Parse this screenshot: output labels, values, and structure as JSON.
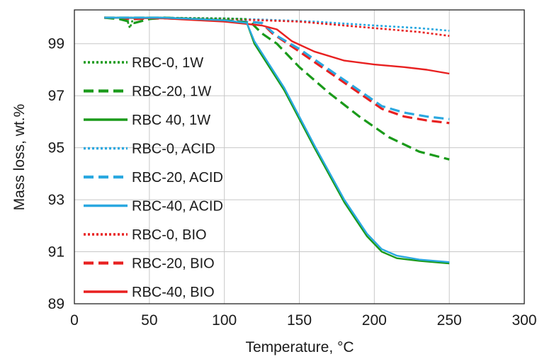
{
  "chart_data": {
    "type": "line",
    "xlabel": "Temperature, °C",
    "ylabel": "Mass loss, wt.%",
    "xlim": [
      0,
      300
    ],
    "ylim": [
      89,
      100.3
    ],
    "xticks": [
      0,
      50,
      100,
      150,
      200,
      250,
      300
    ],
    "yticks": [
      89,
      91,
      93,
      95,
      97,
      99
    ],
    "grid": true,
    "legend_position": "left-inside",
    "series": [
      {
        "name": "RBC-0, 1W",
        "color": "#1a9a1a",
        "style": "dotted",
        "points": [
          [
            20,
            100.0
          ],
          [
            30,
            100.0
          ],
          [
            35,
            99.95
          ],
          [
            37,
            99.6
          ],
          [
            39,
            99.95
          ],
          [
            45,
            100.0
          ],
          [
            60,
            100.0
          ],
          [
            80,
            99.98
          ],
          [
            100,
            99.97
          ],
          [
            115,
            99.95
          ]
        ]
      },
      {
        "name": "RBC-20, 1W",
        "color": "#1a9a1a",
        "style": "dashed",
        "points": [
          [
            20,
            100.0
          ],
          [
            30,
            99.95
          ],
          [
            40,
            99.8
          ],
          [
            50,
            99.95
          ],
          [
            60,
            100.0
          ],
          [
            80,
            99.95
          ],
          [
            100,
            99.9
          ],
          [
            118,
            99.8
          ],
          [
            125,
            99.4
          ],
          [
            135,
            99.0
          ],
          [
            150,
            98.1
          ],
          [
            170,
            97.1
          ],
          [
            190,
            96.2
          ],
          [
            210,
            95.4
          ],
          [
            230,
            94.85
          ],
          [
            250,
            94.55
          ]
        ]
      },
      {
        "name": "RBC 40, 1W",
        "color": "#1a9a1a",
        "style": "solid",
        "points": [
          [
            20,
            100.0
          ],
          [
            60,
            100.0
          ],
          [
            100,
            99.9
          ],
          [
            115,
            99.8
          ],
          [
            120,
            99.0
          ],
          [
            140,
            97.2
          ],
          [
            160,
            95.0
          ],
          [
            180,
            92.9
          ],
          [
            195,
            91.6
          ],
          [
            205,
            91.0
          ],
          [
            215,
            90.75
          ],
          [
            230,
            90.65
          ],
          [
            250,
            90.55
          ]
        ]
      },
      {
        "name": "RBC-0, ACID",
        "color": "#2aa8e0",
        "style": "dotted",
        "points": [
          [
            20,
            100.0
          ],
          [
            60,
            100.0
          ],
          [
            100,
            99.98
          ],
          [
            130,
            99.92
          ],
          [
            160,
            99.85
          ],
          [
            200,
            99.7
          ],
          [
            230,
            99.6
          ],
          [
            250,
            99.5
          ]
        ]
      },
      {
        "name": "RBC-20, ACID",
        "color": "#2aa8e0",
        "style": "dashed",
        "points": [
          [
            20,
            100.0
          ],
          [
            60,
            100.0
          ],
          [
            100,
            99.9
          ],
          [
            125,
            99.8
          ],
          [
            135,
            99.3
          ],
          [
            150,
            98.8
          ],
          [
            170,
            98.0
          ],
          [
            190,
            97.2
          ],
          [
            205,
            96.6
          ],
          [
            220,
            96.35
          ],
          [
            235,
            96.2
          ],
          [
            250,
            96.1
          ]
        ]
      },
      {
        "name": "RBC-40, ACID",
        "color": "#2aa8e0",
        "style": "solid",
        "points": [
          [
            20,
            100.0
          ],
          [
            60,
            100.0
          ],
          [
            100,
            99.9
          ],
          [
            115,
            99.8
          ],
          [
            120,
            99.1
          ],
          [
            140,
            97.3
          ],
          [
            160,
            95.1
          ],
          [
            180,
            93.0
          ],
          [
            195,
            91.7
          ],
          [
            205,
            91.1
          ],
          [
            215,
            90.85
          ],
          [
            230,
            90.7
          ],
          [
            250,
            90.6
          ]
        ]
      },
      {
        "name": "RBC-0, BIO",
        "color": "#e82020",
        "style": "dotted",
        "points": [
          [
            20,
            100.0
          ],
          [
            60,
            100.0
          ],
          [
            100,
            99.95
          ],
          [
            150,
            99.85
          ],
          [
            200,
            99.6
          ],
          [
            230,
            99.45
          ],
          [
            250,
            99.3
          ]
        ]
      },
      {
        "name": "RBC-20, BIO",
        "color": "#e82020",
        "style": "dashed",
        "points": [
          [
            20,
            100.0
          ],
          [
            40,
            99.95
          ],
          [
            60,
            99.98
          ],
          [
            100,
            99.9
          ],
          [
            125,
            99.8
          ],
          [
            132,
            99.4
          ],
          [
            150,
            98.7
          ],
          [
            170,
            97.9
          ],
          [
            190,
            97.1
          ],
          [
            205,
            96.5
          ],
          [
            220,
            96.2
          ],
          [
            235,
            96.05
          ],
          [
            250,
            95.95
          ]
        ]
      },
      {
        "name": "RBC-40, BIO",
        "color": "#e82020",
        "style": "solid",
        "points": [
          [
            20,
            100.0
          ],
          [
            60,
            99.97
          ],
          [
            100,
            99.85
          ],
          [
            125,
            99.7
          ],
          [
            135,
            99.55
          ],
          [
            145,
            99.1
          ],
          [
            160,
            98.7
          ],
          [
            180,
            98.35
          ],
          [
            200,
            98.2
          ],
          [
            220,
            98.1
          ],
          [
            235,
            98.0
          ],
          [
            250,
            97.85
          ]
        ]
      }
    ]
  }
}
